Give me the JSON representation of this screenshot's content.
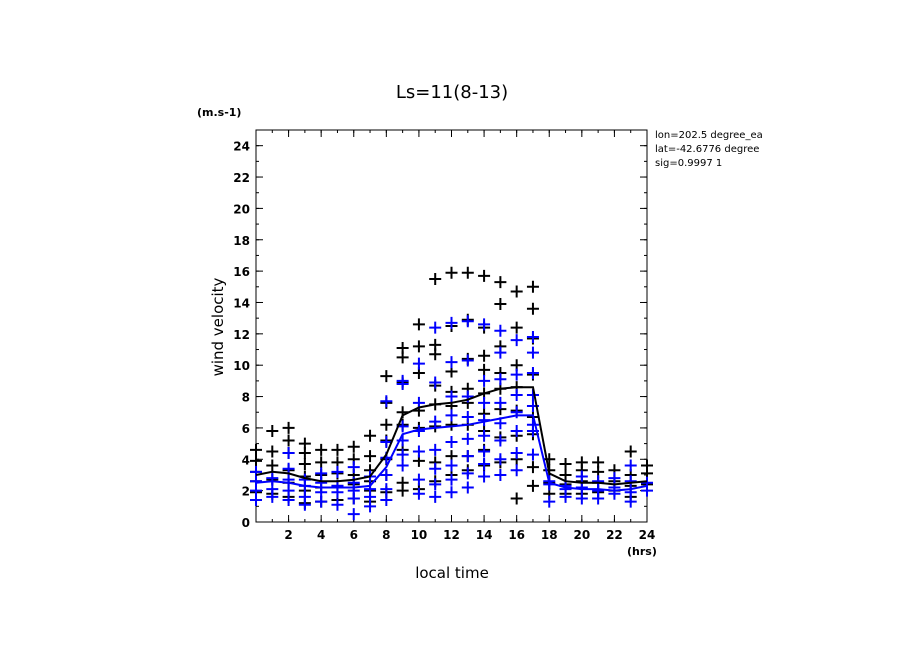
{
  "chart_data": {
    "type": "scatter",
    "title": "Ls=11(8-13)",
    "ylabel": "wind velocity",
    "xlabel": "local time",
    "y_unit": "(m.s-1)",
    "x_unit": "(hrs)",
    "info": [
      "lon=202.5 degree_ea",
      "lat=-42.6776 degree",
      "sig=0.9997 1"
    ],
    "xlim": [
      0,
      24
    ],
    "ylim": [
      0,
      25
    ],
    "x_ticks": [
      2,
      4,
      6,
      8,
      10,
      12,
      14,
      16,
      18,
      20,
      22,
      24
    ],
    "y_ticks": [
      0,
      2,
      4,
      6,
      8,
      10,
      12,
      14,
      16,
      18,
      20,
      22,
      24
    ],
    "grid": false,
    "colors": {
      "black_series": "#000000",
      "blue_series": "#0000ff"
    },
    "scatter_series": [
      {
        "color": "#000000",
        "points": [
          [
            0,
            1.9
          ],
          [
            0,
            2.6
          ],
          [
            0,
            3.2
          ],
          [
            0,
            3.9
          ],
          [
            0,
            4.6
          ],
          [
            1,
            1.8
          ],
          [
            1,
            2.7
          ],
          [
            1,
            3.6
          ],
          [
            1,
            4.5
          ],
          [
            1,
            5.8
          ],
          [
            2,
            1.6
          ],
          [
            2,
            2.5
          ],
          [
            2,
            3.3
          ],
          [
            2,
            4.4
          ],
          [
            2,
            5.2
          ],
          [
            2,
            6.0
          ],
          [
            3,
            1.2
          ],
          [
            3,
            2.0
          ],
          [
            3,
            2.9
          ],
          [
            3,
            3.7
          ],
          [
            3,
            4.4
          ],
          [
            3,
            5.0
          ],
          [
            4,
            1.3
          ],
          [
            4,
            2.2
          ],
          [
            4,
            3.0
          ],
          [
            4,
            3.8
          ],
          [
            4,
            4.6
          ],
          [
            5,
            1.4
          ],
          [
            5,
            2.3
          ],
          [
            5,
            3.1
          ],
          [
            5,
            3.8
          ],
          [
            5,
            4.6
          ],
          [
            6,
            1.5
          ],
          [
            6,
            2.4
          ],
          [
            6,
            3.0
          ],
          [
            6,
            4.0
          ],
          [
            6,
            4.8
          ],
          [
            7,
            1.3
          ],
          [
            7,
            2.0
          ],
          [
            7,
            2.6
          ],
          [
            7,
            3.3
          ],
          [
            7,
            4.2
          ],
          [
            7,
            5.5
          ],
          [
            8,
            1.9
          ],
          [
            8,
            3.0
          ],
          [
            8,
            4.0
          ],
          [
            8,
            5.2
          ],
          [
            8,
            6.2
          ],
          [
            8,
            7.6
          ],
          [
            8,
            9.3
          ],
          [
            9,
            2.0
          ],
          [
            9,
            2.5
          ],
          [
            9,
            4.6
          ],
          [
            9,
            6.2
          ],
          [
            9,
            7.0
          ],
          [
            9,
            8.9
          ],
          [
            9,
            10.5
          ],
          [
            9,
            11.1
          ],
          [
            10,
            2.1
          ],
          [
            10,
            3.9
          ],
          [
            10,
            6.0
          ],
          [
            10,
            7.1
          ],
          [
            10,
            9.5
          ],
          [
            10,
            11.2
          ],
          [
            10,
            12.6
          ],
          [
            11,
            2.6
          ],
          [
            11,
            3.8
          ],
          [
            11,
            6.1
          ],
          [
            11,
            7.5
          ],
          [
            11,
            8.7
          ],
          [
            11,
            10.7
          ],
          [
            11,
            11.3
          ],
          [
            11,
            15.5
          ],
          [
            12,
            3.0
          ],
          [
            12,
            4.2
          ],
          [
            12,
            6.2
          ],
          [
            12,
            7.4
          ],
          [
            12,
            8.3
          ],
          [
            12,
            9.6
          ],
          [
            12,
            12.5
          ],
          [
            12,
            15.9
          ],
          [
            13,
            3.3
          ],
          [
            13,
            4.2
          ],
          [
            13,
            6.2
          ],
          [
            13,
            7.6
          ],
          [
            13,
            8.5
          ],
          [
            13,
            10.4
          ],
          [
            13,
            12.9
          ],
          [
            13,
            15.9
          ],
          [
            14,
            3.6
          ],
          [
            14,
            4.6
          ],
          [
            14,
            5.8
          ],
          [
            14,
            6.9
          ],
          [
            14,
            8.2
          ],
          [
            14,
            9.7
          ],
          [
            14,
            10.6
          ],
          [
            14,
            12.4
          ],
          [
            14,
            15.7
          ],
          [
            15,
            3.8
          ],
          [
            15,
            5.4
          ],
          [
            15,
            7.2
          ],
          [
            15,
            8.5
          ],
          [
            15,
            9.5
          ],
          [
            15,
            11.2
          ],
          [
            15,
            13.9
          ],
          [
            15,
            15.3
          ],
          [
            16,
            1.5
          ],
          [
            16,
            4.0
          ],
          [
            16,
            5.5
          ],
          [
            16,
            7.1
          ],
          [
            16,
            8.6
          ],
          [
            16,
            10.0
          ],
          [
            16,
            12.4
          ],
          [
            16,
            14.7
          ],
          [
            17,
            2.3
          ],
          [
            17,
            3.5
          ],
          [
            17,
            5.6
          ],
          [
            17,
            6.7
          ],
          [
            17,
            9.4
          ],
          [
            17,
            11.7
          ],
          [
            17,
            13.6
          ],
          [
            17,
            15.0
          ],
          [
            18,
            1.8
          ],
          [
            18,
            2.5
          ],
          [
            18,
            3.3
          ],
          [
            18,
            4.0
          ],
          [
            19,
            1.8
          ],
          [
            19,
            2.4
          ],
          [
            19,
            3.0
          ],
          [
            19,
            3.7
          ],
          [
            20,
            1.8
          ],
          [
            20,
            2.6
          ],
          [
            20,
            3.3
          ],
          [
            20,
            3.8
          ],
          [
            21,
            1.9
          ],
          [
            21,
            2.5
          ],
          [
            21,
            3.2
          ],
          [
            21,
            3.8
          ],
          [
            22,
            2.0
          ],
          [
            22,
            2.6
          ],
          [
            22,
            3.3
          ],
          [
            23,
            1.6
          ],
          [
            23,
            2.3
          ],
          [
            23,
            3.0
          ],
          [
            23,
            4.5
          ],
          [
            24,
            2.4
          ],
          [
            24,
            3.1
          ],
          [
            24,
            3.6
          ]
        ]
      },
      {
        "color": "#0000ff",
        "points": [
          [
            0,
            1.4
          ],
          [
            0,
            2.0
          ],
          [
            0,
            2.6
          ],
          [
            0,
            3.2
          ],
          [
            1,
            1.6
          ],
          [
            1,
            2.1
          ],
          [
            1,
            2.8
          ],
          [
            2,
            1.4
          ],
          [
            2,
            2.0
          ],
          [
            2,
            2.7
          ],
          [
            2,
            3.4
          ],
          [
            2,
            4.4
          ],
          [
            3,
            1.1
          ],
          [
            3,
            1.6
          ],
          [
            3,
            2.3
          ],
          [
            3,
            2.7
          ],
          [
            4,
            1.3
          ],
          [
            4,
            1.9
          ],
          [
            4,
            2.5
          ],
          [
            4,
            3.1
          ],
          [
            5,
            1.1
          ],
          [
            5,
            1.9
          ],
          [
            5,
            2.3
          ],
          [
            5,
            3.2
          ],
          [
            6,
            0.5
          ],
          [
            6,
            1.5
          ],
          [
            6,
            2.0
          ],
          [
            6,
            2.5
          ],
          [
            6,
            3.5
          ],
          [
            7,
            1.0
          ],
          [
            7,
            1.6
          ],
          [
            7,
            2.1
          ],
          [
            7,
            2.9
          ],
          [
            8,
            1.4
          ],
          [
            8,
            2.1
          ],
          [
            8,
            3.0
          ],
          [
            8,
            4.1
          ],
          [
            8,
            5.1
          ],
          [
            8,
            7.7
          ],
          [
            9,
            3.6
          ],
          [
            9,
            4.3
          ],
          [
            9,
            5.2
          ],
          [
            9,
            6.1
          ],
          [
            9,
            8.8
          ],
          [
            9,
            9.0
          ],
          [
            10,
            1.8
          ],
          [
            10,
            2.7
          ],
          [
            10,
            4.5
          ],
          [
            10,
            5.8
          ],
          [
            10,
            7.6
          ],
          [
            10,
            10.1
          ],
          [
            11,
            1.6
          ],
          [
            11,
            2.4
          ],
          [
            11,
            3.4
          ],
          [
            11,
            4.6
          ],
          [
            11,
            6.4
          ],
          [
            11,
            8.9
          ],
          [
            11,
            12.4
          ],
          [
            12,
            1.9
          ],
          [
            12,
            2.7
          ],
          [
            12,
            3.6
          ],
          [
            12,
            5.1
          ],
          [
            12,
            6.8
          ],
          [
            12,
            8.0
          ],
          [
            12,
            10.2
          ],
          [
            12,
            12.7
          ],
          [
            13,
            2.2
          ],
          [
            13,
            3.1
          ],
          [
            13,
            4.2
          ],
          [
            13,
            5.3
          ],
          [
            13,
            6.7
          ],
          [
            13,
            8.0
          ],
          [
            13,
            10.3
          ],
          [
            13,
            12.8
          ],
          [
            14,
            2.9
          ],
          [
            14,
            3.7
          ],
          [
            14,
            4.5
          ],
          [
            14,
            5.5
          ],
          [
            14,
            6.5
          ],
          [
            14,
            7.6
          ],
          [
            14,
            9.0
          ],
          [
            14,
            12.6
          ],
          [
            15,
            3.0
          ],
          [
            15,
            4.0
          ],
          [
            15,
            5.2
          ],
          [
            15,
            6.3
          ],
          [
            15,
            7.6
          ],
          [
            15,
            9.1
          ],
          [
            15,
            10.8
          ],
          [
            15,
            12.2
          ],
          [
            16,
            3.3
          ],
          [
            16,
            4.4
          ],
          [
            16,
            5.8
          ],
          [
            16,
            7.0
          ],
          [
            16,
            8.1
          ],
          [
            16,
            9.4
          ],
          [
            16,
            11.6
          ],
          [
            17,
            4.3
          ],
          [
            17,
            5.8
          ],
          [
            17,
            6.2
          ],
          [
            17,
            7.4
          ],
          [
            17,
            8.1
          ],
          [
            17,
            9.5
          ],
          [
            17,
            10.8
          ],
          [
            17,
            11.8
          ],
          [
            18,
            1.3
          ],
          [
            18,
            2.4
          ],
          [
            18,
            2.6
          ],
          [
            19,
            1.6
          ],
          [
            19,
            2.1
          ],
          [
            19,
            2.3
          ],
          [
            20,
            1.5
          ],
          [
            20,
            2.2
          ],
          [
            20,
            2.9
          ],
          [
            21,
            1.5
          ],
          [
            21,
            2.0
          ],
          [
            21,
            2.6
          ],
          [
            22,
            1.8
          ],
          [
            22,
            2.2
          ],
          [
            22,
            2.8
          ],
          [
            23,
            1.3
          ],
          [
            23,
            1.9
          ],
          [
            23,
            2.6
          ],
          [
            23,
            3.6
          ],
          [
            24,
            2.0
          ],
          [
            24,
            2.5
          ]
        ]
      }
    ],
    "line_series": [
      {
        "color": "#000000",
        "x": [
          0,
          1,
          2,
          3,
          4,
          5,
          6,
          7,
          8,
          9,
          10,
          11,
          12,
          13,
          14,
          15,
          16,
          17,
          18,
          19,
          20,
          21,
          22,
          23,
          24
        ],
        "y": [
          3.0,
          3.2,
          3.1,
          2.8,
          2.6,
          2.6,
          2.7,
          2.9,
          4.3,
          6.8,
          7.3,
          7.5,
          7.6,
          7.8,
          8.2,
          8.5,
          8.6,
          8.6,
          3.1,
          2.6,
          2.5,
          2.5,
          2.4,
          2.5,
          2.6
        ]
      },
      {
        "color": "#0000ff",
        "x": [
          0,
          1,
          2,
          3,
          4,
          5,
          6,
          7,
          8,
          9,
          10,
          11,
          12,
          13,
          14,
          15,
          16,
          17,
          18,
          19,
          20,
          21,
          22,
          23,
          24
        ],
        "y": [
          2.5,
          2.6,
          2.5,
          2.3,
          2.2,
          2.2,
          2.2,
          2.3,
          3.5,
          5.6,
          5.9,
          6.0,
          6.1,
          6.2,
          6.4,
          6.6,
          6.8,
          6.8,
          2.5,
          2.2,
          2.1,
          2.1,
          2.0,
          2.1,
          2.3
        ]
      }
    ]
  }
}
